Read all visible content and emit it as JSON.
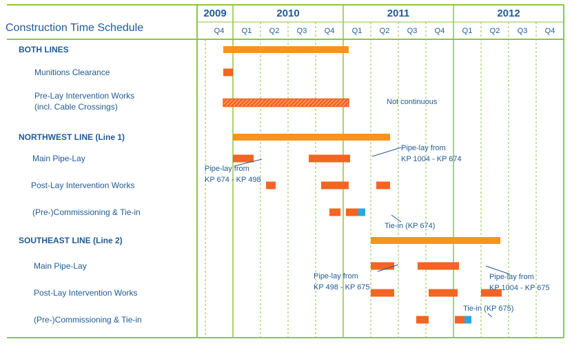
{
  "chart_data": {
    "type": "gantt",
    "title": "Construction Time Schedule",
    "years": [
      {
        "label": "2009",
        "quarters": [
          "Q4"
        ]
      },
      {
        "label": "2010",
        "quarters": [
          "Q1",
          "Q2",
          "Q3",
          "Q4"
        ]
      },
      {
        "label": "2011",
        "quarters": [
          "Q1",
          "Q2",
          "Q3",
          "Q4"
        ]
      },
      {
        "label": "2012",
        "quarters": [
          "Q1",
          "Q2",
          "Q3",
          "Q4"
        ]
      }
    ],
    "time_unit": "quarter index (0 = start of Q4 2009)",
    "colors": {
      "summary": "#f7941d",
      "task": "#f26522",
      "tiein": "#29a9e0",
      "grid": "#8cc63f",
      "text": "#1f5a96"
    },
    "sections": [
      {
        "name": "BOTH LINES",
        "summary": {
          "start": 0.65,
          "end": 5.2
        },
        "tasks": [
          {
            "label": [
              "Munitions Clearance"
            ],
            "bars": [
              {
                "start": 0.65,
                "end": 1.0
              }
            ]
          },
          {
            "label": [
              "Pre-Lay Intervention Works",
              "(incl. Cable Crossings)"
            ],
            "bars": [
              {
                "start": 0.65,
                "end": 5.2,
                "style": "hatched"
              }
            ]
          }
        ]
      },
      {
        "name": "NORTHWEST LINE (Line 1)",
        "summary": {
          "start": 1.0,
          "end": 6.7
        },
        "tasks": [
          {
            "label": [
              "Main Pipe-Lay"
            ],
            "bars": [
              {
                "start": 1.0,
                "end": 1.75
              },
              {
                "start": 3.75,
                "end": 5.25
              }
            ]
          },
          {
            "label": [
              "Post-Lay Intervention Works"
            ],
            "bars": [
              {
                "start": 2.2,
                "end": 2.55
              },
              {
                "start": 4.2,
                "end": 5.2
              },
              {
                "start": 6.2,
                "end": 6.7
              }
            ]
          },
          {
            "label": [
              "(Pre-)Commissioning & Tie-in"
            ],
            "bars": [
              {
                "start": 4.5,
                "end": 4.9
              },
              {
                "start": 5.1,
                "end": 5.55
              }
            ],
            "tieins": [
              {
                "start": 5.55,
                "end": 5.8
              }
            ]
          }
        ]
      },
      {
        "name": "SOUTHEAST LINE (Line 2)",
        "summary": {
          "start": 6.0,
          "end": 10.7
        },
        "tasks": [
          {
            "label": [
              "Main Pipe-Lay"
            ],
            "bars": [
              {
                "start": 6.0,
                "end": 6.85
              },
              {
                "start": 7.7,
                "end": 9.2
              }
            ]
          },
          {
            "label": [
              "Post-Lay Intervention Works"
            ],
            "bars": [
              {
                "start": 6.0,
                "end": 6.85
              },
              {
                "start": 8.1,
                "end": 9.15
              },
              {
                "start": 10.0,
                "end": 10.75
              }
            ]
          },
          {
            "label": [
              "(Pre-)Commissioning & Tie-in"
            ],
            "bars": [
              {
                "start": 7.65,
                "end": 8.1
              },
              {
                "start": 9.05,
                "end": 9.4
              }
            ],
            "tieins": [
              {
                "start": 9.4,
                "end": 9.65
              }
            ]
          }
        ]
      }
    ],
    "annotations": [
      {
        "id": "not-continuous",
        "lines": [
          "Not continuous"
        ]
      },
      {
        "id": "pipelay-674-498",
        "lines": [
          "Pipe-lay from",
          "KP 674 - KP 498"
        ]
      },
      {
        "id": "pipelay-1004-674",
        "lines": [
          "Pipe-lay from",
          "KP 1004 - KP 674"
        ]
      },
      {
        "id": "tiein-674",
        "lines": [
          "Tie-in (KP 674)"
        ]
      },
      {
        "id": "pipelay-498-675",
        "lines": [
          "Pipe-lay from",
          "KP 498 - KP 675"
        ]
      },
      {
        "id": "pipelay-1004-675",
        "lines": [
          "Pipe-lay from",
          "KP 1004 - KP 675"
        ]
      },
      {
        "id": "tiein-675",
        "lines": [
          "Tie-in (KP 675)"
        ]
      }
    ]
  }
}
